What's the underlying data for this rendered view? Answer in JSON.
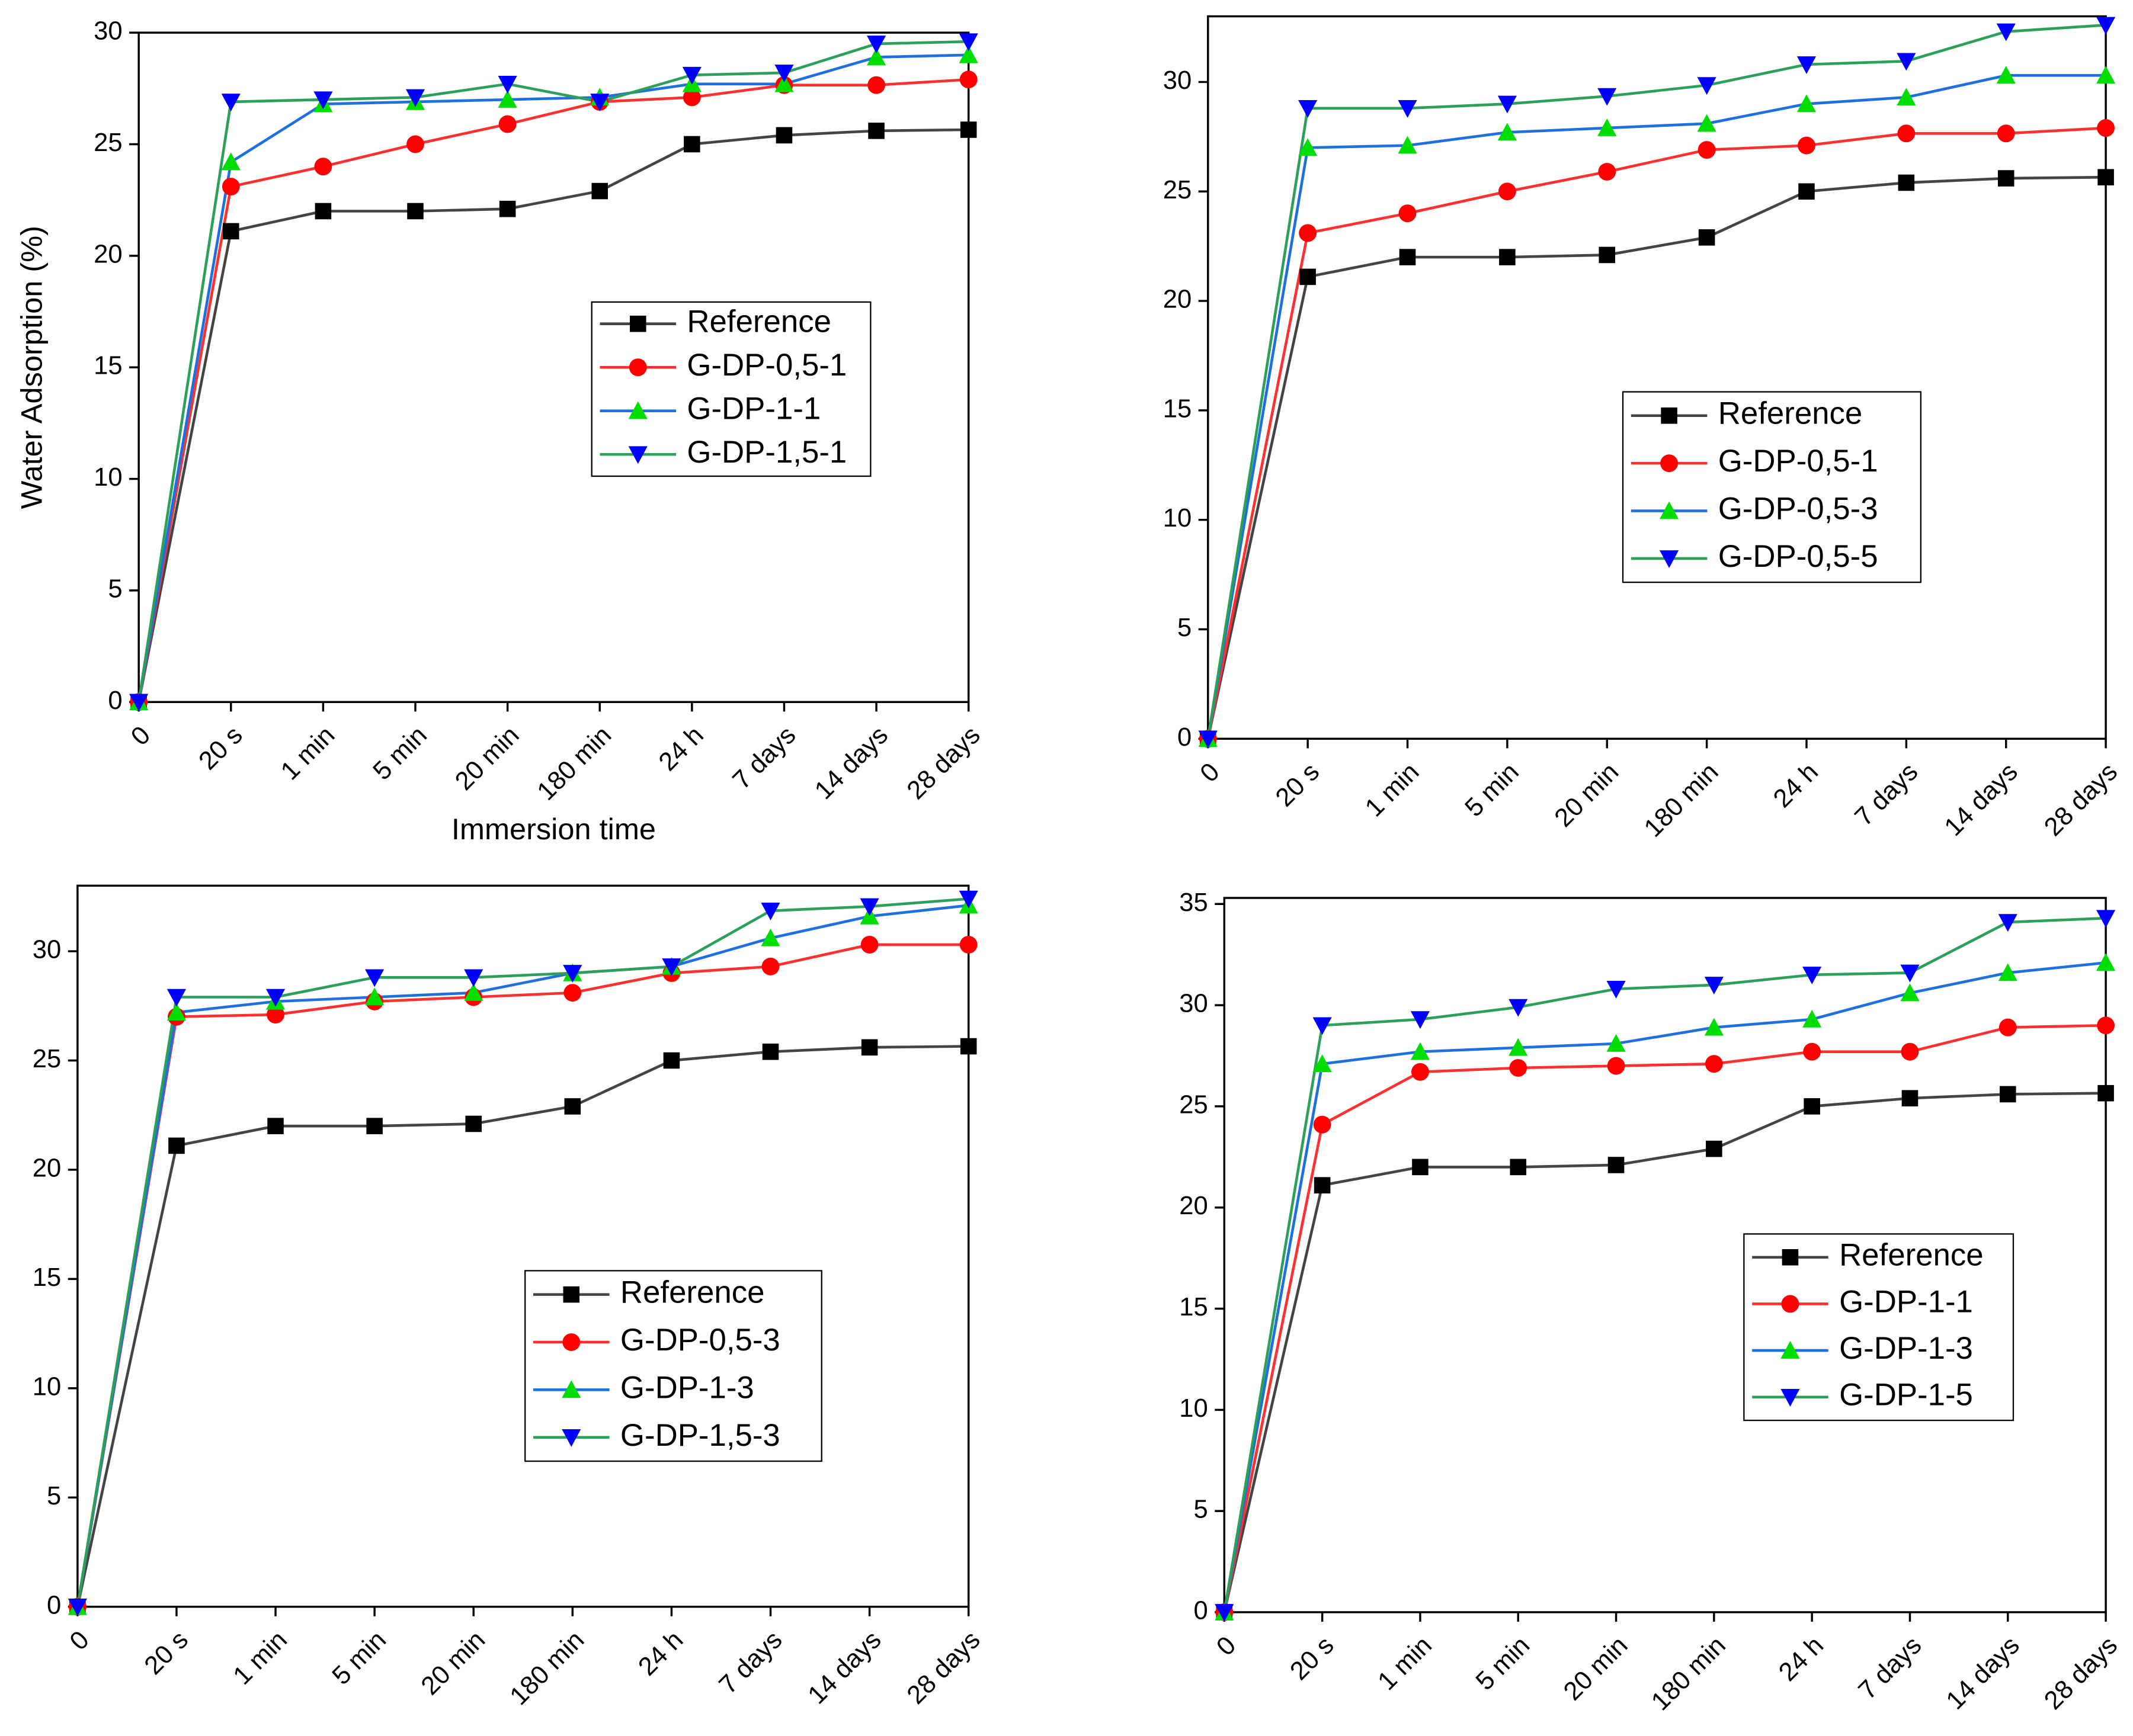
{
  "chart_data": [
    {
      "type": "line",
      "xlabel": "Immersion time",
      "ylabel": "Water Adsorption (%)",
      "categories": [
        "0",
        "20 s",
        "1 min",
        "5 min",
        "20 min",
        "180 min",
        "24 h",
        "7 days",
        "14 days",
        "28 days"
      ],
      "ylim": [
        0,
        30
      ],
      "yticks": [
        0,
        5,
        10,
        15,
        20,
        25,
        30
      ],
      "series": [
        {
          "name": "Reference",
          "color": "#444444",
          "marker_color": "#000000",
          "marker": "square",
          "values": [
            0,
            21.1,
            22,
            22,
            22.1,
            22.9,
            25,
            25.4,
            25.6,
            25.65
          ]
        },
        {
          "name": "G-DP-0,5-1",
          "color": "#ff3030",
          "marker_color": "#ff0000",
          "marker": "circle",
          "values": [
            0,
            23.1,
            24,
            25,
            25.9,
            26.9,
            27.1,
            27.65,
            27.65,
            27.9
          ]
        },
        {
          "name": "G-DP-1-1",
          "color": "#1e6fe0",
          "marker_color": "#00dd00",
          "marker": "triangle-up",
          "values": [
            0,
            24.2,
            26.8,
            26.9,
            27.0,
            27.1,
            27.7,
            27.7,
            28.9,
            29.0
          ]
        },
        {
          "name": "G-DP-1,5-1",
          "color": "#2ca05a",
          "marker_color": "#0000ff",
          "marker": "triangle-down",
          "values": [
            0,
            26.9,
            27.0,
            27.1,
            27.7,
            26.9,
            28.1,
            28.2,
            29.5,
            29.6
          ]
        }
      ]
    },
    {
      "type": "line",
      "categories": [
        "0",
        "20 s",
        "1 min",
        "5 min",
        "20 min",
        "180 min",
        "24 h",
        "7 days",
        "14 days",
        "28 days"
      ],
      "ylim": [
        0,
        33
      ],
      "yticks": [
        0,
        5,
        10,
        15,
        20,
        25,
        30
      ],
      "series": [
        {
          "name": "Reference",
          "color": "#444444",
          "marker_color": "#000000",
          "marker": "square",
          "values": [
            0,
            21.1,
            22,
            22,
            22.1,
            22.9,
            25,
            25.4,
            25.6,
            25.65
          ]
        },
        {
          "name": "G-DP-0,5-1",
          "color": "#ff3030",
          "marker_color": "#ff0000",
          "marker": "circle",
          "values": [
            0,
            23.1,
            24,
            25,
            25.9,
            26.9,
            27.1,
            27.65,
            27.65,
            27.9
          ]
        },
        {
          "name": "G-DP-0,5-3",
          "color": "#1e6fe0",
          "marker_color": "#00dd00",
          "marker": "triangle-up",
          "values": [
            0,
            27.0,
            27.1,
            27.7,
            27.9,
            28.1,
            29.0,
            29.3,
            30.3,
            30.3
          ]
        },
        {
          "name": "G-DP-0,5-5",
          "color": "#2ca05a",
          "marker_color": "#0000ff",
          "marker": "triangle-down",
          "values": [
            0,
            28.8,
            28.8,
            29.0,
            29.35,
            29.85,
            30.8,
            30.95,
            32.3,
            32.6
          ]
        }
      ]
    },
    {
      "type": "line",
      "categories": [
        "0",
        "20 s",
        "1 min",
        "5 min",
        "20 min",
        "180 min",
        "24 h",
        "7 days",
        "14 days",
        "28 days"
      ],
      "ylim": [
        0,
        33
      ],
      "yticks": [
        0,
        5,
        10,
        15,
        20,
        25,
        30
      ],
      "series": [
        {
          "name": "Reference",
          "color": "#444444",
          "marker_color": "#000000",
          "marker": "square",
          "values": [
            0,
            21.1,
            22,
            22,
            22.1,
            22.9,
            25,
            25.4,
            25.6,
            25.65
          ]
        },
        {
          "name": "G-DP-0,5-3",
          "color": "#ff3030",
          "marker_color": "#ff0000",
          "marker": "circle",
          "values": [
            0,
            27.0,
            27.1,
            27.7,
            27.9,
            28.1,
            29.0,
            29.3,
            30.3,
            30.3
          ]
        },
        {
          "name": "G-DP-1-3",
          "color": "#1e6fe0",
          "marker_color": "#00dd00",
          "marker": "triangle-up",
          "values": [
            0,
            27.2,
            27.7,
            27.9,
            28.1,
            29.0,
            29.3,
            30.6,
            31.6,
            32.1
          ]
        },
        {
          "name": "G-DP-1,5-3",
          "color": "#2ca05a",
          "marker_color": "#0000ff",
          "marker": "triangle-down",
          "values": [
            0,
            27.9,
            27.9,
            28.8,
            28.8,
            29.0,
            29.3,
            31.85,
            32.05,
            32.4
          ]
        }
      ]
    },
    {
      "type": "line",
      "categories": [
        "0",
        "20 s",
        "1 min",
        "5 min",
        "20 min",
        "180 min",
        "24 h",
        "7 days",
        "14 days",
        "28 days"
      ],
      "ylim": [
        0,
        35.3
      ],
      "yticks": [
        0,
        5,
        10,
        15,
        20,
        25,
        30,
        35
      ],
      "series": [
        {
          "name": "Reference",
          "color": "#444444",
          "marker_color": "#000000",
          "marker": "square",
          "values": [
            0,
            21.1,
            22,
            22,
            22.1,
            22.9,
            25,
            25.4,
            25.6,
            25.65
          ]
        },
        {
          "name": "G-DP-1-1",
          "color": "#ff3030",
          "marker_color": "#ff0000",
          "marker": "circle",
          "values": [
            0,
            24.1,
            26.7,
            26.9,
            27.0,
            27.1,
            27.7,
            27.7,
            28.9,
            29.0
          ]
        },
        {
          "name": "G-DP-1-3",
          "color": "#1e6fe0",
          "marker_color": "#00dd00",
          "marker": "triangle-up",
          "values": [
            0,
            27.1,
            27.7,
            27.9,
            28.1,
            28.9,
            29.3,
            30.6,
            31.6,
            32.1
          ]
        },
        {
          "name": "G-DP-1-5",
          "color": "#2ca05a",
          "marker_color": "#0000ff",
          "marker": "triangle-down",
          "values": [
            0,
            29.0,
            29.3,
            29.9,
            30.8,
            31.0,
            31.5,
            31.6,
            34.1,
            34.3
          ]
        }
      ]
    }
  ]
}
